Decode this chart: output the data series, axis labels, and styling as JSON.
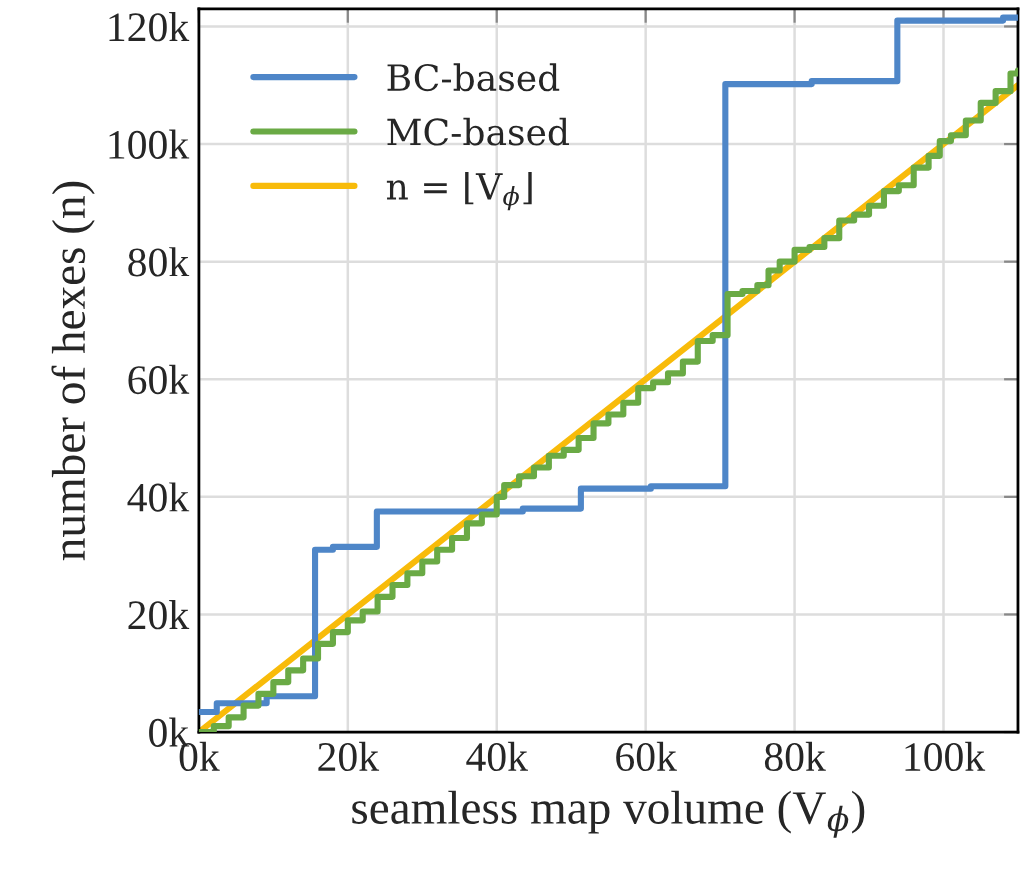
{
  "chart_data": {
    "type": "step",
    "xlabel": "seamless map volume (V$_{ϕ}$)",
    "ylabel": "number of hexes (n)",
    "xlim": [
      0,
      110000
    ],
    "ylim": [
      0,
      123000
    ],
    "xticks": [
      {
        "value": 0,
        "label": "0k"
      },
      {
        "value": 20000,
        "label": "20k"
      },
      {
        "value": 40000,
        "label": "40k"
      },
      {
        "value": 60000,
        "label": "60k"
      },
      {
        "value": 80000,
        "label": "80k"
      },
      {
        "value": 100000,
        "label": "100k"
      }
    ],
    "yticks": [
      {
        "value": 0,
        "label": "0k"
      },
      {
        "value": 20000,
        "label": "20k"
      },
      {
        "value": 40000,
        "label": "40k"
      },
      {
        "value": 60000,
        "label": "60k"
      },
      {
        "value": 80000,
        "label": "80k"
      },
      {
        "value": 100000,
        "label": "100k"
      },
      {
        "value": 120000,
        "label": "120k"
      }
    ],
    "grid": true,
    "legend": "top left",
    "series": [
      {
        "name": "BC-based",
        "color": "#4e86c8",
        "x": [
          0,
          2400,
          9100,
          15600,
          18000,
          23900,
          43500,
          51300,
          60700,
          70700,
          82300,
          93800,
          108000,
          110000
        ],
        "values": [
          3400,
          4900,
          6100,
          31000,
          31500,
          37500,
          38000,
          41400,
          41800,
          110200,
          110700,
          121000,
          121500,
          121500
        ]
      },
      {
        "name": "MC-based",
        "color": "#6aaa45",
        "x": [
          0,
          2000,
          4000,
          6000,
          8000,
          10000,
          12000,
          14000,
          16000,
          18000,
          20000,
          22000,
          24000,
          26000,
          28000,
          30000,
          32000,
          34000,
          36000,
          38000,
          40000,
          41000,
          43000,
          45000,
          47000,
          49000,
          51000,
          53000,
          55000,
          57000,
          59000,
          61000,
          63000,
          65000,
          67000,
          69000,
          71000,
          73000,
          75000,
          76500,
          78000,
          80000,
          82000,
          84000,
          86000,
          88000,
          90000,
          92000,
          94000,
          96000,
          98000,
          99500,
          101000,
          103000,
          105000,
          107000,
          109000,
          110000
        ],
        "values": [
          0,
          1000,
          2500,
          4500,
          6500,
          8500,
          10500,
          12500,
          15000,
          17000,
          19000,
          20500,
          23000,
          25000,
          27000,
          29000,
          31000,
          33000,
          35500,
          37000,
          40000,
          42000,
          43500,
          45000,
          47000,
          48000,
          50000,
          52500,
          54000,
          56000,
          58500,
          59500,
          61000,
          63000,
          66500,
          67500,
          74500,
          75000,
          76000,
          78500,
          80000,
          82000,
          82500,
          84000,
          87000,
          88000,
          89500,
          92000,
          93000,
          96000,
          98000,
          100500,
          101500,
          104000,
          107000,
          109000,
          112000,
          112500
        ]
      },
      {
        "name": "n = ⌊V$_{ϕ}$⌋",
        "type": "line",
        "color": "#f8bb0a",
        "x": [
          0,
          110000
        ],
        "values": [
          0,
          110000
        ]
      }
    ]
  }
}
